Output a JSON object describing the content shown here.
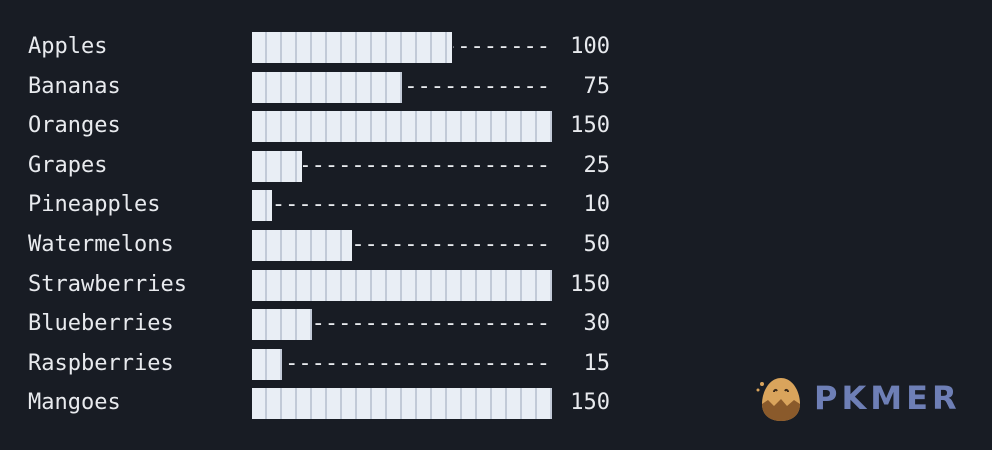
{
  "chart_data": {
    "type": "bar",
    "orientation": "horizontal",
    "categories": [
      "Apples",
      "Bananas",
      "Oranges",
      "Grapes",
      "Pineapples",
      "Watermelons",
      "Strawberries",
      "Blueberries",
      "Raspberries",
      "Mangoes"
    ],
    "values": [
      100,
      75,
      150,
      25,
      10,
      50,
      150,
      30,
      15,
      150
    ],
    "xlim": [
      0,
      150
    ],
    "bar_color": "#e9eef5",
    "filler_char": "-",
    "background": "#181c24"
  },
  "logo": {
    "text": "PKMER",
    "color": "#6e7fb6"
  }
}
